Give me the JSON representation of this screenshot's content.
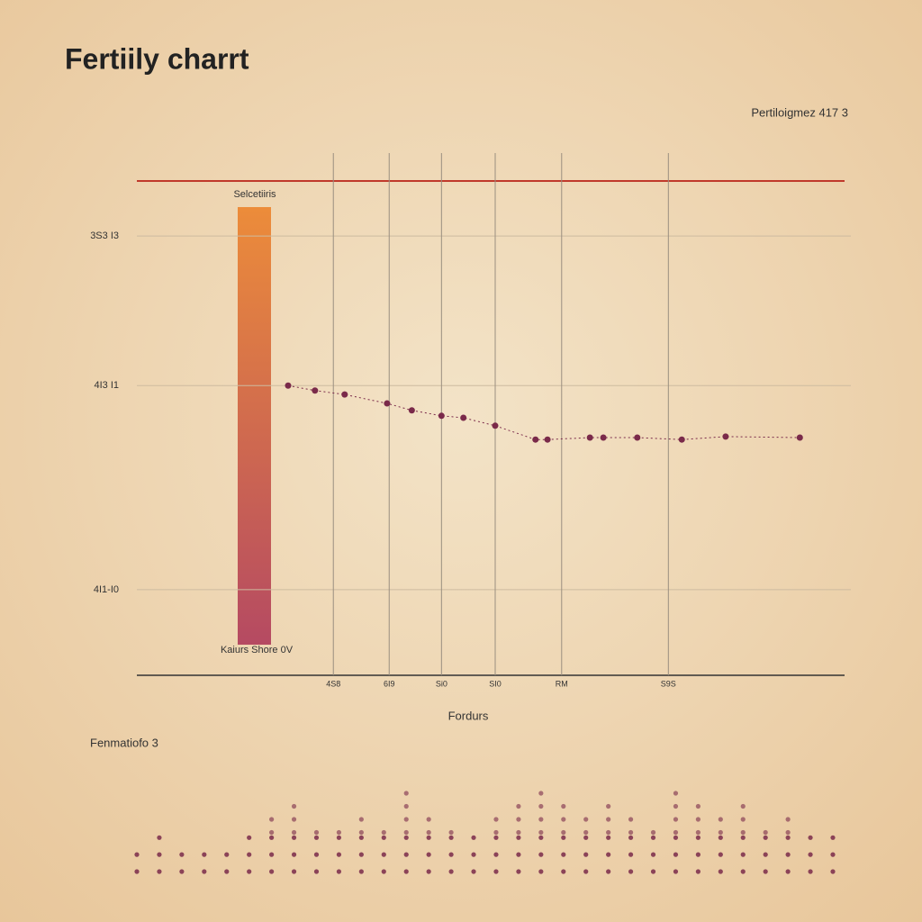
{
  "chart_data": [
    {
      "type": "line",
      "title": "Fertiily charrt",
      "subtitle": "Pertiloigmez 417 3",
      "x_label": "Fordurs",
      "annotations": [
        "Selcetiiris",
        "Kaiurs Shore 0V"
      ],
      "x": [
        21.4,
        25.2,
        29.4,
        35.4,
        38.9,
        43.1,
        46.2,
        50.7,
        56.4,
        58.1,
        64.1,
        66.0,
        70.8,
        77.1,
        83.3,
        93.8
      ],
      "series": [
        {
          "color": "#7a2a4a",
          "values": [
            58.5,
            57.5,
            56.7,
            54.9,
            53.5,
            52.4,
            52.0,
            50.4,
            47.6,
            47.6,
            48.0,
            48.0,
            48.0,
            47.6,
            48.2,
            48.0
          ]
        }
      ],
      "xlim": [
        0,
        100
      ],
      "ylim": [
        0,
        100
      ],
      "xticks": [
        {
          "value": 27.8,
          "label": "4S8"
        },
        {
          "value": 35.7,
          "label": "6I9"
        },
        {
          "value": 43.1,
          "label": "Si0"
        },
        {
          "value": 50.7,
          "label": "SI0"
        },
        {
          "value": 60.1,
          "label": "RM"
        },
        {
          "value": 75.2,
          "label": "S9S"
        }
      ],
      "yticks": [
        {
          "value": 17.3,
          "label": "4I1-I0"
        },
        {
          "value": 58.5,
          "label": "4I3 I1"
        },
        {
          "value": 88.7,
          "label": "3S3 I3"
        }
      ],
      "grid": true
    },
    {
      "type": "dot",
      "title": "Fenmatiofo 3",
      "color": "#7a2a4a",
      "values": [
        2,
        3,
        2,
        2,
        2,
        3,
        5,
        6,
        4,
        4,
        5,
        4,
        7,
        5,
        4,
        3,
        5,
        6,
        7,
        6,
        5,
        6,
        5,
        4,
        7,
        6,
        5,
        6,
        4,
        5,
        3,
        3
      ]
    }
  ]
}
